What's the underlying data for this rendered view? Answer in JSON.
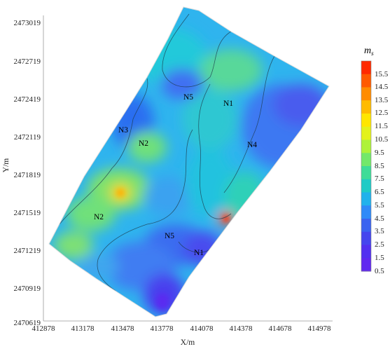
{
  "map": {
    "x_axis": {
      "label": "X/m",
      "ticks": [
        "412878",
        "413178",
        "413478",
        "413778",
        "414078",
        "414378",
        "414678",
        "414978"
      ],
      "range": [
        412878,
        415178
      ]
    },
    "y_axis": {
      "label": "Y/m",
      "ticks": [
        "2473019",
        "2472719",
        "2472419",
        "2472119",
        "2471819",
        "2471519",
        "2471219",
        "2470919",
        "2470619"
      ],
      "range": [
        2470619,
        2473019
      ]
    },
    "colorbar": {
      "title": "m",
      "title_sub": "s",
      "ticks": [
        "15.5",
        "14.5",
        "13.5",
        "12.5",
        "11.5",
        "10.5",
        "9.5",
        "8.5",
        "7.5",
        "6.5",
        "5.5",
        "4.5",
        "3.5",
        "2.5",
        "1.5",
        "0.5"
      ],
      "colors": [
        "#ff2a00",
        "#ff5a00",
        "#ff8c00",
        "#ffbb00",
        "#ffe600",
        "#e3f21c",
        "#aef23a",
        "#73e86a",
        "#3fdc98",
        "#1fcbc6",
        "#21b2ec",
        "#2f8af8",
        "#3a63f0",
        "#4545ee",
        "#5230f0",
        "#6028f0"
      ]
    },
    "zones": [
      {
        "label": "N1",
        "x": 414180,
        "y": 2472400
      },
      {
        "label": "N1",
        "x": 414080,
        "y": 2471150
      },
      {
        "label": "N2",
        "x": 413670,
        "y": 2472020
      },
      {
        "label": "N2",
        "x": 413280,
        "y": 2471410
      },
      {
        "label": "N3",
        "x": 413500,
        "y": 2472090
      },
      {
        "label": "N4",
        "x": 414390,
        "y": 2471960
      },
      {
        "label": "N5",
        "x": 413930,
        "y": 2472450
      },
      {
        "label": "N5",
        "x": 413860,
        "y": 2471250
      }
    ]
  }
}
